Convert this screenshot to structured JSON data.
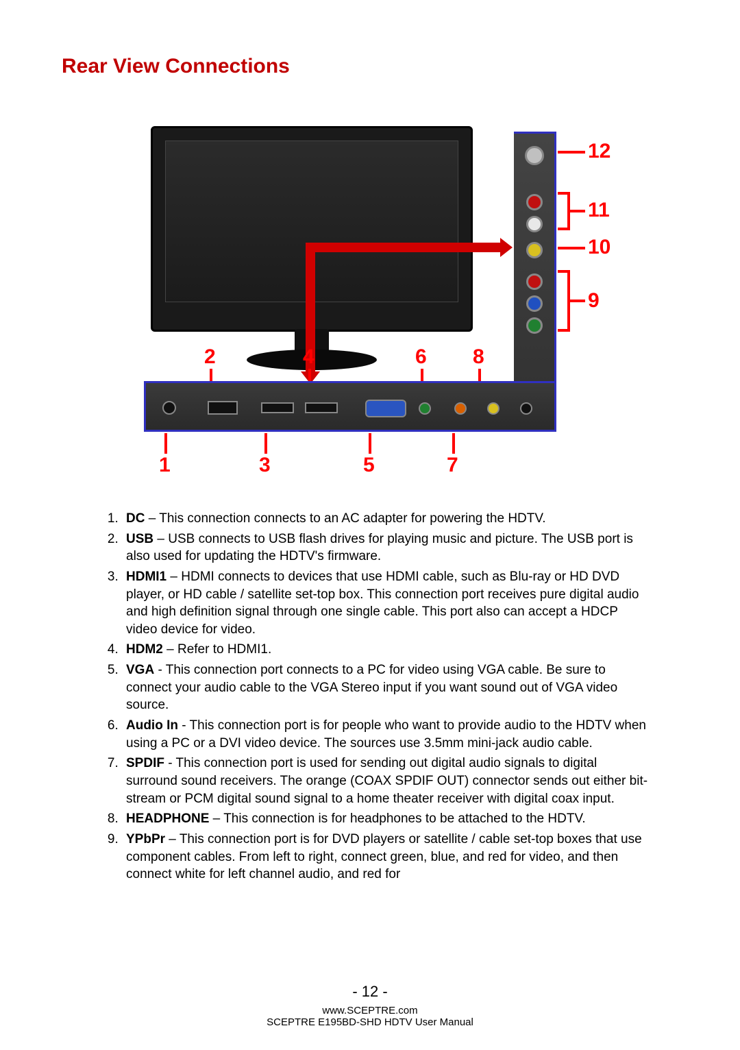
{
  "title": "Rear View Connections",
  "labels": {
    "n1": "1",
    "n2": "2",
    "n3": "3",
    "n4": "4",
    "n5": "5",
    "n6": "6",
    "n7": "7",
    "n8": "8",
    "n9": "9",
    "n10": "10",
    "n11": "11",
    "n12": "12"
  },
  "items": [
    {
      "term": "DC",
      "sep": " – ",
      "body": "This connection connects to an AC adapter for powering the HDTV."
    },
    {
      "term": "USB",
      "sep": " – ",
      "body": "USB connects to USB flash drives for playing music and picture.  The USB port is also used for updating the HDTV's firmware."
    },
    {
      "term": "HDMI1",
      "sep": " – ",
      "body": "HDMI connects to devices that use HDMI cable, such as Blu-ray or HD DVD player, or HD cable / satellite set-top box.  This connection port receives pure digital audio and high definition signal through one single cable.  This port also can accept a HDCP video device for video."
    },
    {
      "term": "HDM2",
      "sep": " – ",
      "body": "Refer to HDMI1."
    },
    {
      "term": "VGA",
      "sep": " - ",
      "body": "This connection port connects to a PC for video using VGA cable. Be sure to connect your audio cable to the VGA Stereo input if you want sound out of VGA video source."
    },
    {
      "term": "Audio In",
      "sep": " - ",
      "body": "This connection port is for people who want to provide audio to the HDTV when using a PC or a DVI video device. The sources use 3.5mm mini-jack audio cable."
    },
    {
      "term": "SPDIF",
      "sep": " - ",
      "body": "This connection port is used for sending out digital audio signals to digital surround sound receivers.  The orange (COAX SPDIF OUT) connector sends out either bit-stream or PCM digital sound signal to a home theater receiver with digital coax input."
    },
    {
      "term": "HEADPHONE",
      "sep": " – ",
      "body": "This connection is for headphones to be attached to the HDTV."
    },
    {
      "term": "YPbPr",
      "sep": " – ",
      "body": "This connection port is for DVD players or satellite / cable set-top boxes that use component cables.  From left to right, connect green, blue, and red for video, and then connect white for left channel audio, and red for"
    }
  ],
  "footer": {
    "page": "- 12 -",
    "url": "www.SCEPTRE.com",
    "manual": "SCEPTRE E195BD-SHD HDTV User Manual"
  },
  "colors": {
    "accent_red": "#ff0000",
    "title_red": "#c00000",
    "panel_border_blue": "#3030c0",
    "jack_coax": "#c0c0c0",
    "jack_red": "#c01010",
    "jack_white": "#e8e8e8",
    "jack_yellow": "#d8c020",
    "jack_green": "#208030",
    "jack_blue": "#2050c0"
  }
}
